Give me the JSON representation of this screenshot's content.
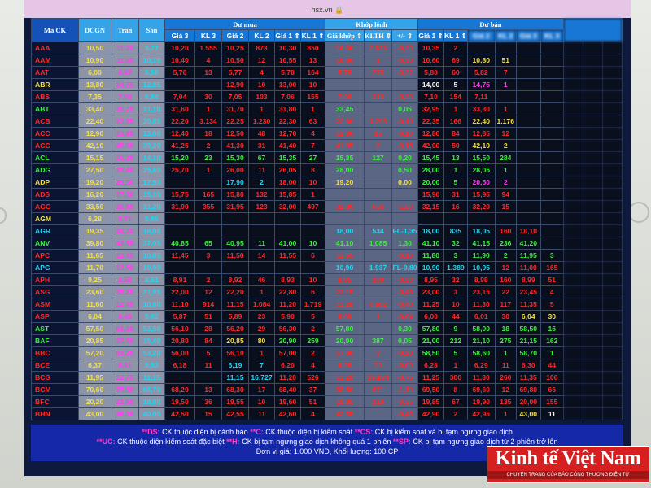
{
  "browser": {
    "url": "hsx.vn"
  },
  "colors": {
    "red": "#ff2a2a",
    "green": "#3ef03e",
    "yellow": "#f1e04a",
    "cyan": "#22d6f2",
    "purple": "#ff3cf0",
    "header": "#1877d4"
  },
  "header": {
    "symbol": "Mã CK",
    "ref": "DCGN",
    "ceiling": "Trần",
    "floor": "Sàn",
    "buy_group": "Dư mua",
    "match_group": "Khớp lệnh",
    "sell_group": "Dư bán",
    "buy_cols": [
      "Giá 3",
      "KL 3",
      "Giá 2",
      "KL 2",
      "Giá 1 ⇕",
      "KL 1 ⇕"
    ],
    "match_cols": [
      "Giá khớp ⇕",
      "KLTH ⇕",
      "+/- ⇕"
    ],
    "sell_cols": [
      "Giá 1 ⇕",
      "KL 1 ⇕",
      "Giá 2",
      "KL 2",
      "Giá 3",
      "KL 3"
    ]
  },
  "rows": [
    {
      "sym": "AAA",
      "sc": "r",
      "cl": "rrrrrrrrrrrrrrr",
      "v": [
        "10,50",
        "11,20",
        "9,77",
        "10,20",
        "1.555",
        "10,25",
        "873",
        "10,30",
        "850",
        "10,30",
        "2.636",
        "-0,20",
        "10,35",
        "2",
        "",
        "",
        "",
        ""
      ]
    },
    {
      "sym": "AAM",
      "sc": "r",
      "cl": "rrrrrrrrrrryyrr",
      "v": [
        "10,90",
        "11,65",
        "10,15",
        "10,40",
        "4",
        "10,50",
        "12",
        "10,55",
        "13",
        "10,60",
        "1",
        "-0,30",
        "10,60",
        "69",
        "10,80",
        "51",
        "",
        ""
      ]
    },
    {
      "sym": "AAT",
      "sc": "r",
      "cl": "rrrrrrrrrrrrrrr",
      "v": [
        "6,00",
        "6,42",
        "5,58",
        "5,76",
        "13",
        "5,77",
        "4",
        "5,78",
        "164",
        "5,78",
        "276",
        "-0,22",
        "5,80",
        "60",
        "5,82",
        "7",
        "",
        ""
      ]
    },
    {
      "sym": "ABR",
      "sc": "y",
      "cl": "rrrrrrrrrwwpprr",
      "v": [
        "13,80",
        "14,75",
        "12,85",
        "",
        "",
        "12,90",
        "10",
        "13,00",
        "10",
        "",
        "",
        "",
        "14,00",
        "5",
        "14,75",
        "1",
        "",
        ""
      ]
    },
    {
      "sym": "ABS",
      "sc": "r",
      "cl": "rrrrrrrrrrrrrrr",
      "v": [
        "7,35",
        "7,86",
        "6,84",
        "7,04",
        "30",
        "7,05",
        "103",
        "7,06",
        "155",
        "7,06",
        "313",
        "-0,29",
        "7,10",
        "154",
        "7,11",
        "",
        "",
        ""
      ]
    },
    {
      "sym": "ABT",
      "sc": "g",
      "cl": "rrrrrrgggrrrrrr",
      "v": [
        "33,40",
        "35,70",
        "31,10",
        "31,60",
        "1",
        "31,70",
        "1",
        "31,80",
        "1",
        "33,45",
        "",
        "0,05",
        "32,95",
        "1",
        "33,30",
        "1",
        "",
        ""
      ]
    },
    {
      "sym": "ACB",
      "sc": "r",
      "cl": "rrrrrrrrrrryyrr",
      "v": [
        "22,40",
        "23,95",
        "20,85",
        "22,20",
        "3.134",
        "22,25",
        "1.230",
        "22,30",
        "63",
        "22,30",
        "1.795",
        "-0,10",
        "22,35",
        "166",
        "22,40",
        "1.176",
        "",
        ""
      ]
    },
    {
      "sym": "ACC",
      "sc": "r",
      "cl": "rrrrrrrrrrrrrrr",
      "v": [
        "12,90",
        "13,80",
        "12,00",
        "12,40",
        "18",
        "12,50",
        "48",
        "12,70",
        "4",
        "12,80",
        "15",
        "-0,10",
        "12,80",
        "84",
        "12,85",
        "12",
        "",
        ""
      ]
    },
    {
      "sym": "ACG",
      "sc": "r",
      "cl": "rrrrrrrrrrryyrr",
      "v": [
        "42,10",
        "45,00",
        "39,20",
        "41,25",
        "2",
        "41,30",
        "31",
        "41,40",
        "7",
        "41,95",
        "8",
        "-0,15",
        "42,00",
        "50",
        "42,10",
        "2",
        "",
        ""
      ]
    },
    {
      "sym": "ACL",
      "sc": "g",
      "cl": "ggggggggggggggg",
      "v": [
        "15,15",
        "16,20",
        "14,10",
        "15,20",
        "23",
        "15,30",
        "67",
        "15,35",
        "27",
        "15,35",
        "127",
        "0,20",
        "15,45",
        "13",
        "15,50",
        "284",
        "",
        ""
      ]
    },
    {
      "sym": "ADG",
      "sc": "g",
      "cl": "rrrrrrggggggggg",
      "v": [
        "27,50",
        "29,40",
        "25,60",
        "25,70",
        "1",
        "26,00",
        "11",
        "26,05",
        "8",
        "28,00",
        "",
        "0,50",
        "28,00",
        "1",
        "28,05",
        "1",
        "",
        ""
      ]
    },
    {
      "sym": "ADP",
      "sc": "y",
      "cl": "rrccrryyyggpprr",
      "v": [
        "19,20",
        "20,50",
        "17,90",
        "",
        "",
        "17,90",
        "2",
        "18,00",
        "10",
        "19,20",
        "",
        "0,00",
        "20,00",
        "5",
        "20,50",
        "2",
        "",
        ""
      ]
    },
    {
      "sym": "ADS",
      "sc": "r",
      "cl": "rrrrrrrrrrrrrrr",
      "v": [
        "16,20",
        "17,30",
        "15,10",
        "15,75",
        "165",
        "15,80",
        "132",
        "15,85",
        "1",
        "",
        "",
        "",
        "15,90",
        "31",
        "15,95",
        "94",
        "",
        ""
      ]
    },
    {
      "sym": "AGG",
      "sc": "r",
      "cl": "rrrrrrrrrrrrrrr",
      "v": [
        "33,50",
        "35,80",
        "31,20",
        "31,90",
        "355",
        "31,95",
        "123",
        "32,00",
        "497",
        "32,00",
        "656",
        "-1,50",
        "32,15",
        "16",
        "32,20",
        "15",
        "",
        ""
      ]
    },
    {
      "sym": "AGM",
      "sc": "y",
      "cl": "rrrrrrrrrrrrrrr",
      "v": [
        "6,28",
        "6,71",
        "5,85",
        "",
        "",
        "",
        "",
        "",
        "",
        "",
        "",
        "",
        "",
        "",
        "",
        "",
        "",
        ""
      ]
    },
    {
      "sym": "AGR",
      "sc": "c",
      "cl": "rrrrrrccccccrrr",
      "v": [
        "19,35",
        "20,70",
        "18,00",
        "",
        "",
        "",
        "",
        "",
        "",
        "18,00",
        "534",
        "FL-1,35",
        "18,00",
        "835",
        "18,05",
        "160",
        "18,10",
        ""
      ]
    },
    {
      "sym": "ANV",
      "sc": "g",
      "cl": "ggggggggggggggg",
      "v": [
        "39,80",
        "42,55",
        "37,05",
        "40,85",
        "65",
        "40,95",
        "11",
        "41,00",
        "10",
        "41,10",
        "1.085",
        "1,30",
        "41,10",
        "32",
        "41,15",
        "236",
        "41,20",
        ""
      ]
    },
    {
      "sym": "APC",
      "sc": "r",
      "cl": "rrrrrrrrrgggggg",
      "v": [
        "11,65",
        "12,45",
        "10,85",
        "11,45",
        "3",
        "11,50",
        "14",
        "11,55",
        "6",
        "11,55",
        "",
        "-0,10",
        "11,80",
        "3",
        "11,90",
        "2",
        "11,95",
        "3"
      ]
    },
    {
      "sym": "APG",
      "sc": "c",
      "cl": "rrrrrrccccccrrr",
      "v": [
        "11,70",
        "12,50",
        "10,90",
        "",
        "",
        "",
        "",
        "",
        "",
        "10,90",
        "1.937",
        "FL-0,80",
        "10,90",
        "1.389",
        "10,95",
        "12",
        "11,00",
        "165"
      ]
    },
    {
      "sym": "APH",
      "sc": "r",
      "cl": "rrrrrrrrrrrrrrr",
      "v": [
        "9,25",
        "9,89",
        "8,61",
        "8,91",
        "2",
        "8,92",
        "46",
        "8,93",
        "10",
        "8,95",
        "289",
        "-0,30",
        "8,95",
        "32",
        "8,98",
        "160",
        "8,99",
        "51"
      ]
    },
    {
      "sym": "ASG",
      "sc": "r",
      "cl": "rrrrrrrrrrrrrrr",
      "v": [
        "23,60",
        "25,25",
        "21,95",
        "22,00",
        "12",
        "22,20",
        "1",
        "22,80",
        "6",
        "23,15",
        "",
        "-0,45",
        "23,00",
        "3",
        "23,15",
        "22",
        "23,45",
        "4"
      ]
    },
    {
      "sym": "ASM",
      "sc": "r",
      "cl": "rrrrrrrrrrrrrrr",
      "v": [
        "11,60",
        "12,40",
        "10,80",
        "11,10",
        "914",
        "11,15",
        "1.084",
        "11,20",
        "1.719",
        "11,20",
        "4.602",
        "-0,40",
        "11,25",
        "10",
        "11,30",
        "117",
        "11,35",
        "5"
      ]
    },
    {
      "sym": "ASP",
      "sc": "r",
      "cl": "rrrrrrrrrrrrryy",
      "v": [
        "6,04",
        "6,46",
        "5,62",
        "5,87",
        "51",
        "5,89",
        "23",
        "5,90",
        "5",
        "6,00",
        "1",
        "-0,04",
        "6,00",
        "44",
        "6,01",
        "30",
        "6,04",
        "30"
      ]
    },
    {
      "sym": "AST",
      "sc": "g",
      "cl": "rrrrrrggggggggg",
      "v": [
        "57,50",
        "61,50",
        "53,50",
        "56,10",
        "28",
        "56,20",
        "29",
        "56,30",
        "2",
        "57,80",
        "",
        "0,30",
        "57,80",
        "9",
        "58,00",
        "18",
        "58,50",
        "16"
      ]
    },
    {
      "sym": "BAF",
      "sc": "g",
      "cl": "rryyggggggggggg",
      "v": [
        "20,85",
        "22,30",
        "19,40",
        "20,80",
        "84",
        "20,85",
        "80",
        "20,90",
        "259",
        "20,90",
        "387",
        "0,05",
        "21,00",
        "212",
        "21,10",
        "275",
        "21,15",
        "162"
      ]
    },
    {
      "sym": "BBC",
      "sc": "r",
      "cl": "rrrrrrrrrgggggg",
      "v": [
        "57,20",
        "61,20",
        "53,20",
        "56,00",
        "5",
        "56,10",
        "1",
        "57,00",
        "2",
        "57,00",
        "3",
        "-0,20",
        "58,50",
        "5",
        "58,60",
        "1",
        "58,70",
        "1"
      ]
    },
    {
      "sym": "BCE",
      "sc": "r",
      "cl": "rrccrrrrrrrrrrr",
      "v": [
        "6,37",
        "6,81",
        "5,93",
        "6,18",
        "11",
        "6,19",
        "7",
        "6,20",
        "4",
        "6,28",
        "20",
        "-0,09",
        "6,28",
        "1",
        "6,29",
        "11",
        "6,30",
        "44"
      ]
    },
    {
      "sym": "BCG",
      "sc": "r",
      "cl": "rrccrrrrrrrrrrr",
      "v": [
        "11,95",
        "12,75",
        "11,15",
        "",
        "",
        "11,15",
        "16.727",
        "11,20",
        "526",
        "11,20",
        "19.834",
        "-0,75",
        "11,25",
        "300",
        "11,30",
        "260",
        "11,35",
        "106"
      ]
    },
    {
      "sym": "BCM",
      "sc": "r",
      "cl": "rrrrrrrrrrrrrrr",
      "v": [
        "70,60",
        "75,50",
        "65,70",
        "68,20",
        "13",
        "68,30",
        "17",
        "68,40",
        "37",
        "68,50",
        "671",
        "-1,10",
        "69,50",
        "8",
        "69,60",
        "12",
        "69,80",
        "66"
      ]
    },
    {
      "sym": "BFC",
      "sc": "r",
      "cl": "rrrrrrrrrrrrrrr",
      "v": [
        "20,20",
        "21,60",
        "18,80",
        "19,50",
        "36",
        "19,55",
        "10",
        "19,60",
        "51",
        "19,85",
        "319",
        "-0,35",
        "19,85",
        "67",
        "19,90",
        "135",
        "20,00",
        "155"
      ]
    },
    {
      "sym": "BHN",
      "sc": "r",
      "cl": "rrrrrrrrrrrrryw",
      "v": [
        "43,00",
        "46,00",
        "40,00",
        "42,50",
        "15",
        "42,55",
        "11",
        "42,60",
        "4",
        "42,55",
        "",
        "-0,45",
        "42,90",
        "2",
        "42,95",
        "1",
        "43,00",
        "11"
      ]
    }
  ],
  "legend": {
    "l1": [
      {
        "k": "**DS:",
        "t": " CK thuộc diện bị cảnh báo "
      },
      {
        "k": "**C:",
        "t": " CK thuộc diện bị kiểm soát "
      },
      {
        "k": "**CS:",
        "t": " CK bị kiểm soát và bị tạm ngưng giao dịch"
      }
    ],
    "l2": [
      {
        "k": "**UC:",
        "t": " CK thuộc diện kiểm soát đặc biệt "
      },
      {
        "k": "**H:",
        "t": " CK bị tạm ngưng giao dịch không quá 1 phiên "
      },
      {
        "k": "**SP:",
        "t": " CK bị tạm ngưng giao dịch từ 2 phiên trở lên"
      }
    ],
    "unit": "Đơn vị giá: 1.000 VND, Khối lượng: 100 CP"
  },
  "logo": {
    "title": "Kinh tế Việt Nam",
    "subtitle": "CHUYÊN TRANG CỦA BÁO CÔNG THƯƠNG ĐIỆN TỬ"
  }
}
